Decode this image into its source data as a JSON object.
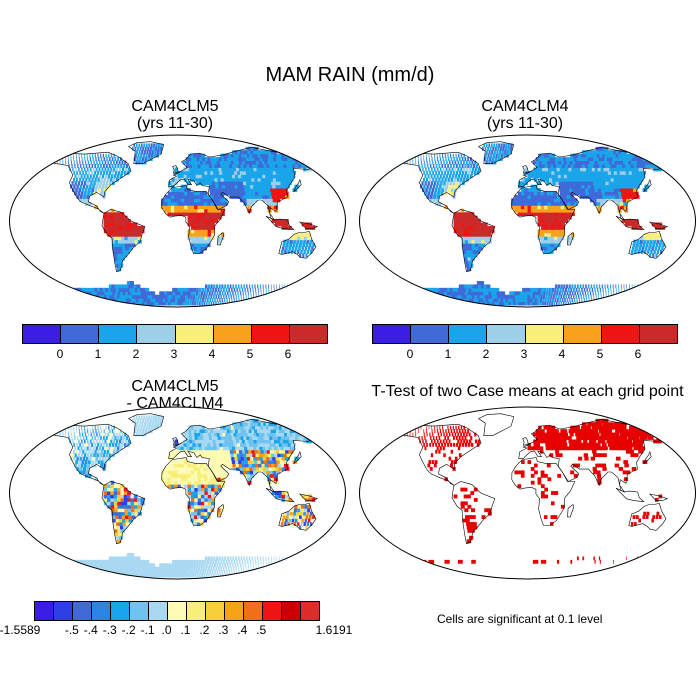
{
  "title": "MAM RAIN (mm/d)",
  "panels": [
    {
      "title_line1": "CAM4CLM5",
      "title_line2": "(yrs 11-30)"
    },
    {
      "title_line1": "CAM4CLM4",
      "title_line2": "(yrs 11-30)"
    },
    {
      "title_line1": "CAM4CLM5",
      "title_line2": "- CAM4CLM4"
    },
    {
      "title_line1": "T-Test of two Case means at each grid point",
      "title_line2": ""
    }
  ],
  "colorbar_main": {
    "colors": [
      "#3a1ee6",
      "#3f6ad8",
      "#1aa4ea",
      "#9dcfe9",
      "#f7ef7a",
      "#f7a21a",
      "#f01414",
      "#cc2a2a"
    ],
    "labels": [
      "0",
      "1",
      "2",
      "3",
      "4",
      "5",
      "6"
    ]
  },
  "colorbar_diff": {
    "colors": [
      "#3a1ee6",
      "#2f3fe6",
      "#3f6ad8",
      "#2b86e3",
      "#1aa4ea",
      "#6fc3ee",
      "#a9d9f2",
      "#fdfbb3",
      "#f7ef7a",
      "#f7cf3a",
      "#f7a21a",
      "#f0701a",
      "#f01414",
      "#cc0000",
      "#e02b2b"
    ],
    "labels": [
      "-1.5589",
      "-.5",
      "-.4",
      "-.3",
      "-.2",
      "-.1",
      ".0",
      ".1",
      ".2",
      ".3",
      ".4",
      ".5",
      "1.6191"
    ]
  },
  "note": "Cells are significant at 0.1 level",
  "colors": {
    "ocean": "#ffffff",
    "outline": "#000000",
    "signif": "#e60000"
  }
}
